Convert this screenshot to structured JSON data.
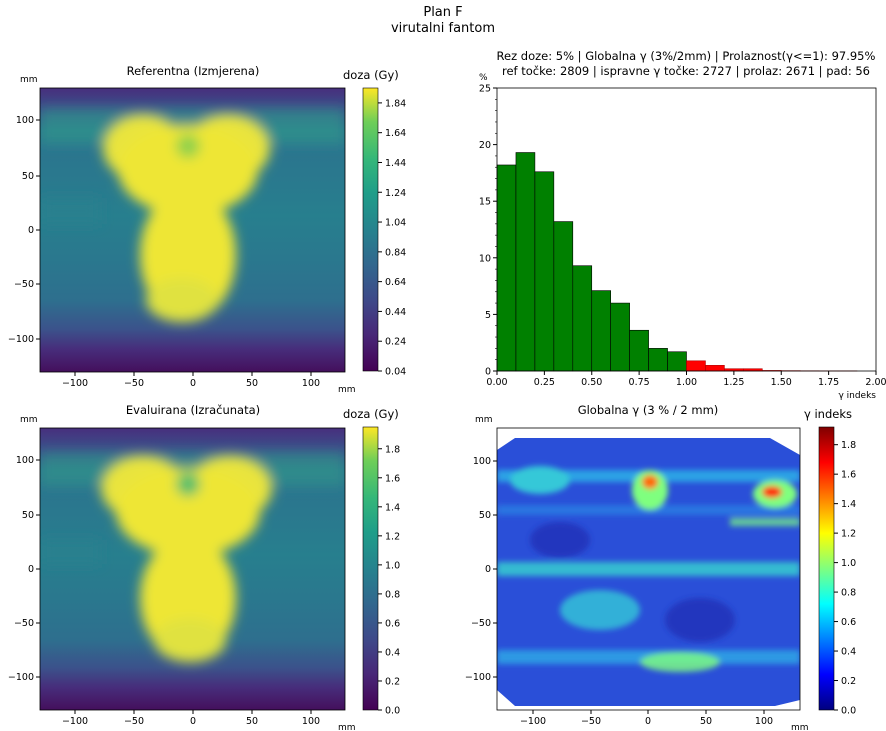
{
  "suptitle": {
    "line1": "Plan F",
    "line2": "virutalni fantom"
  },
  "panels": {
    "reference": {
      "title": "Referentna (Izmjerena)",
      "unit_x": "mm",
      "unit_y": "mm",
      "cbar_label": "doza (Gy)",
      "cbar_ticks": [
        "0.04",
        "0.24",
        "0.44",
        "0.64",
        "0.84",
        "1.04",
        "1.24",
        "1.44",
        "1.64",
        "1.84"
      ],
      "cbar_range": [
        0.04,
        1.94
      ]
    },
    "evaluated": {
      "title": "Evaluirana (Izračunata)",
      "unit_x": "mm",
      "unit_y": "mm",
      "cbar_label": "doza (Gy)",
      "cbar_ticks": [
        "0.0",
        "0.2",
        "0.4",
        "0.6",
        "0.8",
        "1.0",
        "1.2",
        "1.4",
        "1.6",
        "1.8"
      ],
      "cbar_range": [
        0.0,
        1.95
      ]
    },
    "histogram": {
      "title_line1": "Rez doze: 5% | Globalna γ (3%/2mm) | Prolaznost(γ<=1): 97.95%",
      "title_line2": "ref točke: 2809 | ispravne γ točke: 2727 | prolaz: 2671 | pad: 56",
      "ylabel": "%",
      "xlabel": "γ indeks"
    },
    "gamma_map": {
      "title": "Globalna γ (3 % / 2 mm)",
      "unit_x": "mm",
      "unit_y": "mm",
      "cbar_label": "γ indeks",
      "cbar_ticks": [
        "0.0",
        "0.2",
        "0.4",
        "0.6",
        "0.8",
        "1.0",
        "1.2",
        "1.4",
        "1.6",
        "1.8"
      ],
      "cbar_range": [
        0.0,
        1.92
      ]
    }
  },
  "colors": {
    "pass": "#008000",
    "fail": "#ff0000"
  },
  "chart_data": [
    {
      "type": "heatmap",
      "title": "Referentna (Izmjerena)",
      "x_ticks": [
        "−100",
        "−50",
        "0",
        "50",
        "100"
      ],
      "y_ticks": [
        "100",
        "50",
        "0",
        "−50",
        "−100"
      ],
      "xlim": [
        -130,
        130
      ],
      "ylim": [
        -130,
        130
      ],
      "colormap": "viridis"
    },
    {
      "type": "heatmap",
      "title": "Evaluirana (Izračunata)",
      "x_ticks": [
        "−100",
        "−50",
        "0",
        "50",
        "100"
      ],
      "y_ticks": [
        "100",
        "50",
        "0",
        "−50",
        "−100"
      ],
      "xlim": [
        -130,
        130
      ],
      "ylim": [
        -130,
        130
      ],
      "colormap": "viridis"
    },
    {
      "type": "bar",
      "title": "Rez doze: 5% | Globalna γ (3%/2mm) | Prolaznost(γ<=1): 97.95%",
      "x_ticks": [
        "0.00",
        "0.25",
        "0.50",
        "0.75",
        "1.00",
        "1.25",
        "1.50",
        "1.75",
        "2.00"
      ],
      "y_ticks": [
        "0",
        "5",
        "10",
        "15",
        "20",
        "25"
      ],
      "xlim": [
        0,
        2.0
      ],
      "ylim": [
        0,
        25
      ],
      "bin_width": 0.1,
      "bin_starts": [
        0.0,
        0.1,
        0.2,
        0.3,
        0.4,
        0.5,
        0.6,
        0.7,
        0.8,
        0.9,
        1.0,
        1.1,
        1.2,
        1.3,
        1.4,
        1.5,
        1.6,
        1.7,
        1.8,
        1.9
      ],
      "values": [
        18.2,
        19.3,
        17.6,
        13.2,
        9.3,
        7.1,
        6.0,
        3.6,
        2.0,
        1.7,
        0.9,
        0.5,
        0.2,
        0.2,
        0.05,
        0.03,
        0.02,
        0.01,
        0.01,
        0.0
      ]
    },
    {
      "type": "heatmap",
      "title": "Globalna γ (3 % / 2 mm)",
      "x_ticks": [
        "−100",
        "−50",
        "0",
        "50",
        "100"
      ],
      "y_ticks": [
        "100",
        "50",
        "0",
        "−50",
        "−100"
      ],
      "xlim": [
        -130,
        130
      ],
      "ylim": [
        -130,
        130
      ],
      "colormap": "jet"
    }
  ]
}
